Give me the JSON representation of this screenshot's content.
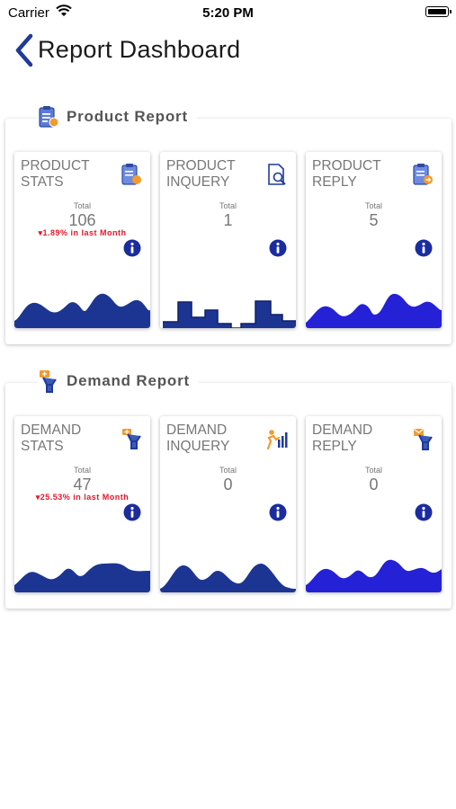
{
  "status_bar": {
    "carrier": "Carrier",
    "time": "5:20 PM"
  },
  "nav": {
    "title": "Report Dashboard"
  },
  "sections": [
    {
      "title": "Product Report",
      "icon": "report-clipboard-icon",
      "cards": [
        {
          "line1": "PRODUCT",
          "line2": "STATS",
          "total_label": "Total",
          "total": "106",
          "trend": "1.89%  in last Month",
          "icon": "clipboard-stats-icon"
        },
        {
          "line1": "PRODUCT",
          "line2": "INQUERY",
          "total_label": "Total",
          "total": "1",
          "trend": "",
          "icon": "document-search-icon"
        },
        {
          "line1": "PRODUCT",
          "line2": "REPLY",
          "total_label": "Total",
          "total": "5",
          "trend": "",
          "icon": "clipboard-reply-icon"
        }
      ]
    },
    {
      "title": "Demand Report",
      "icon": "person-sign-icon",
      "cards": [
        {
          "line1": "DEMAND",
          "line2": "STATS",
          "total_label": "Total",
          "total": "47",
          "trend": "25.53%  in last Month",
          "icon": "person-stats-sign-icon"
        },
        {
          "line1": "DEMAND",
          "line2": "INQUERY",
          "total_label": "Total",
          "total": "0",
          "trend": "",
          "icon": "person-chart-icon"
        },
        {
          "line1": "DEMAND",
          "line2": "REPLY",
          "total_label": "Total",
          "total": "0",
          "trend": "",
          "icon": "person-mail-icon"
        }
      ]
    }
  ],
  "colors": {
    "chart_dark": "#1d3592",
    "chart_bright": "#2421d6",
    "info": "#1b2c9e",
    "trend_down": "#e4182c",
    "icon_blue": "#3b5bb5",
    "icon_orange": "#f39a2e"
  }
}
